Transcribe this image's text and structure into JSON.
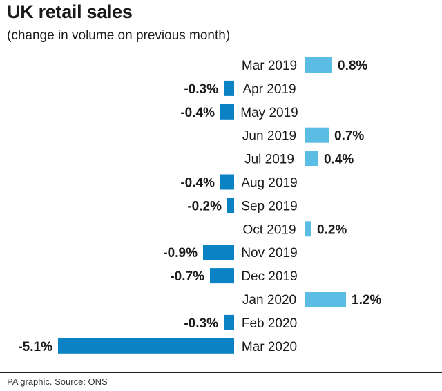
{
  "header": {
    "title": "UK retail sales",
    "subtitle": "(change in volume on previous month)"
  },
  "footer": {
    "source": "PA graphic. Source: ONS"
  },
  "colors": {
    "positive": "#5bbde4",
    "negative": "#0a82c3",
    "text": "#1a1a1a"
  },
  "chart_data": {
    "type": "bar",
    "orientation": "horizontal",
    "title": "UK retail sales",
    "subtitle": "(change in volume on previous month)",
    "xlabel": "",
    "ylabel": "",
    "unit": "%",
    "grid": false,
    "categories": [
      "Mar 2019",
      "Apr 2019",
      "May 2019",
      "Jun 2019",
      "Jul 2019",
      "Aug 2019",
      "Sep 2019",
      "Oct 2019",
      "Nov 2019",
      "Dec 2019",
      "Jan 2020",
      "Feb 2020",
      "Mar 2020"
    ],
    "values": [
      0.8,
      -0.3,
      -0.4,
      0.7,
      0.4,
      -0.4,
      -0.2,
      0.2,
      -0.9,
      -0.7,
      1.2,
      -0.3,
      -5.1
    ],
    "value_labels": [
      "0.8%",
      "-0.3%",
      "-0.4%",
      "0.7%",
      "0.4%",
      "-0.4%",
      "-0.2%",
      "0.2%",
      "-0.9%",
      "-0.7%",
      "1.2%",
      "-0.3%",
      "-5.1%"
    ]
  }
}
